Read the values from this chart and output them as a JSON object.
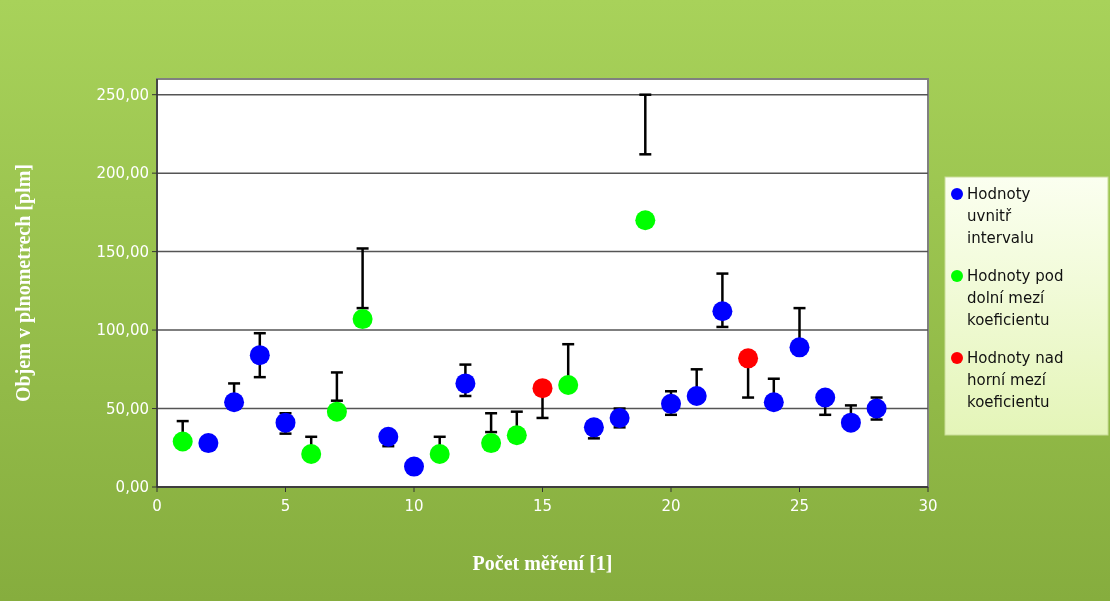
{
  "chart_data": {
    "type": "scatter",
    "xlabel": "Počet měření [1]",
    "ylabel": "Objem v plnometrech [plm]",
    "xlim": [
      0,
      30
    ],
    "xticks": [
      0,
      5,
      10,
      15,
      20,
      25,
      30
    ],
    "ylim": [
      0,
      260
    ],
    "yticks": [
      {
        "value": 0,
        "label": "0,00"
      },
      {
        "value": 50,
        "label": "50,00"
      },
      {
        "value": 100,
        "label": "100,00"
      },
      {
        "value": 150,
        "label": "150,00"
      },
      {
        "value": 200,
        "label": "200,00"
      },
      {
        "value": 250,
        "label": "250,00"
      }
    ],
    "grid": "y",
    "legend": "right",
    "marker": "circle",
    "series": [
      {
        "name": "Hodnoty uvnitř intervalu",
        "color": "#0000ff",
        "x": [
          2,
          3,
          4,
          5,
          9,
          10,
          12,
          17,
          18,
          20,
          21,
          22,
          24,
          25,
          26,
          27,
          28
        ],
        "values": [
          28,
          54,
          84,
          41,
          32,
          13,
          66,
          38,
          44,
          53,
          58,
          112,
          54,
          89,
          57,
          41,
          50
        ],
        "errors": [
          null,
          [
            54,
            66
          ],
          [
            70,
            98
          ],
          [
            34,
            47
          ],
          [
            26,
            32
          ],
          null,
          [
            58,
            78
          ],
          [
            31,
            38
          ],
          [
            38,
            50
          ],
          [
            46,
            61
          ],
          [
            58,
            75
          ],
          [
            102,
            136
          ],
          [
            54,
            69
          ],
          [
            89,
            114
          ],
          [
            46,
            57
          ],
          [
            41,
            52
          ],
          [
            43,
            57
          ]
        ]
      },
      {
        "name": "Hodnoty pod dolní mezí koeficientu",
        "color": "#00ff00",
        "x": [
          1,
          6,
          7,
          8,
          11,
          13,
          14,
          16,
          19
        ],
        "values": [
          29,
          21,
          48,
          107,
          21,
          28,
          33,
          65,
          170
        ],
        "errors": [
          [
            29,
            42
          ],
          [
            21,
            32
          ],
          [
            55,
            73
          ],
          [
            114,
            152
          ],
          [
            21,
            32
          ],
          [
            35,
            47
          ],
          [
            33,
            48
          ],
          [
            65,
            91
          ],
          [
            212,
            250
          ]
        ]
      },
      {
        "name": "Hodnoty nad horní mezí koeficientu",
        "color": "#ff0000",
        "x": [
          15,
          23
        ],
        "values": [
          63,
          82
        ],
        "errors": [
          [
            44,
            63
          ],
          [
            57,
            82
          ]
        ]
      }
    ]
  }
}
